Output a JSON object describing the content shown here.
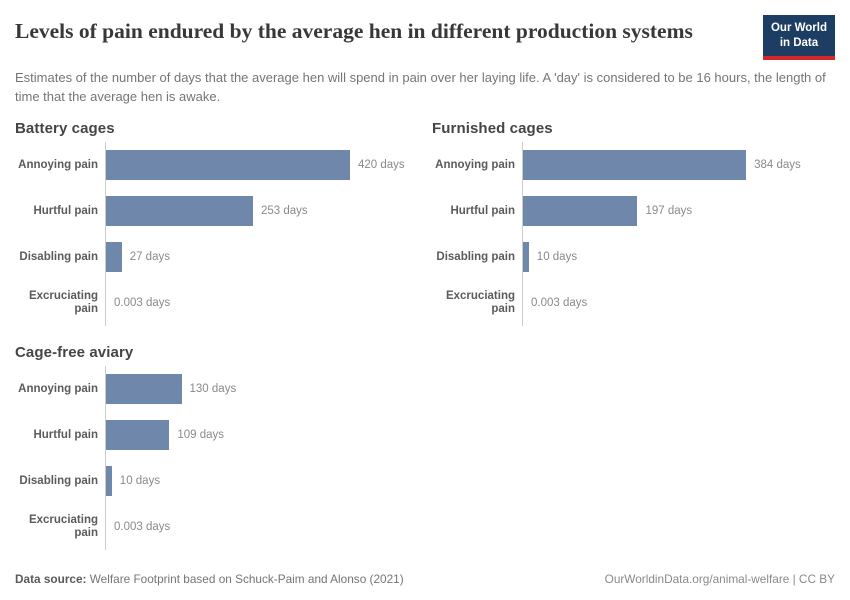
{
  "header": {
    "title": "Levels of pain endured by the average hen in different production systems",
    "subtitle": "Estimates of the number of days that the average hen will spend in pain over her laying life. A 'day' is considered to be 16 hours, the length of time that the average hen is awake.",
    "logo": {
      "line1": "Our World",
      "line2": "in Data"
    }
  },
  "chart_data": [
    {
      "type": "bar",
      "title": "Battery cages",
      "categories": [
        "Annoying pain",
        "Hurtful pain",
        "Disabling pain",
        "Excruciating pain"
      ],
      "values": [
        420,
        253,
        27,
        0.003
      ],
      "value_labels": [
        "420 days",
        "253 days",
        "27 days",
        "0.003 days"
      ],
      "xlabel": "",
      "ylabel": "",
      "xlim": [
        0,
        420
      ],
      "grid": false,
      "legend": "none"
    },
    {
      "type": "bar",
      "title": "Furnished cages",
      "categories": [
        "Annoying pain",
        "Hurtful pain",
        "Disabling pain",
        "Excruciating pain"
      ],
      "values": [
        384,
        197,
        10,
        0.003
      ],
      "value_labels": [
        "384 days",
        "197 days",
        "10 days",
        "0.003 days"
      ],
      "xlabel": "",
      "ylabel": "",
      "xlim": [
        0,
        420
      ],
      "grid": false,
      "legend": "none"
    },
    {
      "type": "bar",
      "title": "Cage-free aviary",
      "categories": [
        "Annoying pain",
        "Hurtful pain",
        "Disabling pain",
        "Excruciating pain"
      ],
      "values": [
        130,
        109,
        10,
        0.003
      ],
      "value_labels": [
        "130 days",
        "109 days",
        "10 days",
        "0.003 days"
      ],
      "xlabel": "",
      "ylabel": "",
      "xlim": [
        0,
        420
      ],
      "grid": false,
      "legend": "none"
    }
  ],
  "style": {
    "bar_color": "#6e87ab",
    "axis_color": "#cccccc",
    "logo_bg": "#1d3d63",
    "logo_accent": "#d22b27"
  },
  "footer": {
    "source_label": "Data source:",
    "source_text": "Welfare Footprint based on Schuck-Paim and Alonso (2021)",
    "credit": "OurWorldinData.org/animal-welfare | CC BY"
  }
}
